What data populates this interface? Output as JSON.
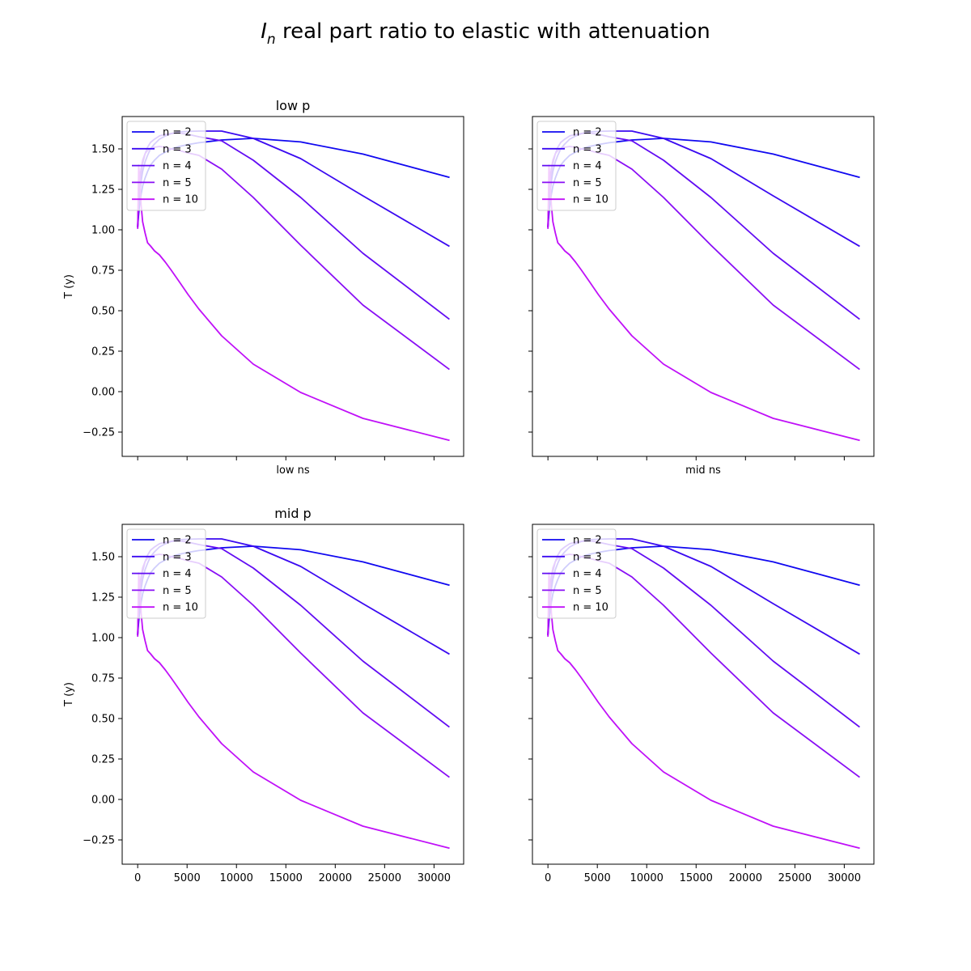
{
  "figure": {
    "suptitle_main": "I",
    "suptitle_sub": "n",
    "suptitle_rest": " real part ratio to elastic with attenuation"
  },
  "chart_data": [
    {
      "type": "line",
      "title": "low p",
      "xlabel": "low ns",
      "ylabel": "T (y)",
      "xlim": [
        -1570,
        33000
      ],
      "ylim": [
        -0.4,
        1.7
      ],
      "xticks": [
        0,
        5000,
        10000,
        15000,
        20000,
        25000,
        30000
      ],
      "show_xticklabels": false,
      "yticks": [
        "−0.25",
        "0.00",
        "0.25",
        "0.50",
        "0.75",
        "1.00",
        "1.25",
        "1.50"
      ],
      "show_yticklabels": true,
      "grid": false,
      "legend_position": "top-left",
      "x": [
        0,
        100,
        200,
        350,
        500,
        750,
        1000,
        1300,
        1700,
        2200,
        2800,
        3400,
        4200,
        5100,
        6200,
        8500,
        11700,
        16500,
        22800,
        31500
      ],
      "series": [
        {
          "name": "n = 2",
          "color": "#1008f0",
          "values": [
            1.02,
            1.1,
            1.16,
            1.22,
            1.27,
            1.32,
            1.36,
            1.4,
            1.43,
            1.46,
            1.48,
            1.5,
            1.515,
            1.527,
            1.538,
            1.555,
            1.565,
            1.543,
            1.468,
            1.325
          ]
        },
        {
          "name": "n = 3",
          "color": "#3b0af1",
          "values": [
            1.02,
            1.14,
            1.22,
            1.3,
            1.36,
            1.42,
            1.46,
            1.5,
            1.53,
            1.56,
            1.58,
            1.595,
            1.605,
            1.608,
            1.61,
            1.61,
            1.565,
            1.44,
            1.21,
            0.9
          ]
        },
        {
          "name": "n = 4",
          "color": "#620cf3",
          "values": [
            1.02,
            1.18,
            1.27,
            1.35,
            1.41,
            1.47,
            1.51,
            1.54,
            1.56,
            1.58,
            1.59,
            1.595,
            1.598,
            1.59,
            1.575,
            1.55,
            1.43,
            1.2,
            0.855,
            0.45
          ]
        },
        {
          "name": "n = 5",
          "color": "#890ef5",
          "values": [
            1.02,
            1.22,
            1.31,
            1.38,
            1.43,
            1.47,
            1.49,
            1.5,
            1.51,
            1.515,
            1.51,
            1.5,
            1.49,
            1.475,
            1.46,
            1.375,
            1.2,
            0.905,
            0.535,
            0.14
          ]
        },
        {
          "name": "n = 10",
          "color": "#c010f8",
          "values": [
            1.01,
            1.4,
            1.32,
            1.15,
            1.05,
            0.98,
            0.92,
            0.9,
            0.87,
            0.845,
            0.8,
            0.75,
            0.68,
            0.6,
            0.51,
            0.345,
            0.17,
            -0.005,
            -0.165,
            -0.3
          ]
        }
      ]
    },
    {
      "type": "line",
      "title": "",
      "xlabel": "mid ns",
      "ylabel": "",
      "xlim": [
        -1570,
        33000
      ],
      "ylim": [
        -0.4,
        1.7
      ],
      "xticks": [
        0,
        5000,
        10000,
        15000,
        20000,
        25000,
        30000
      ],
      "show_xticklabels": false,
      "yticks": [
        "−0.25",
        "0.00",
        "0.25",
        "0.50",
        "0.75",
        "1.00",
        "1.25",
        "1.50"
      ],
      "show_yticklabels": false,
      "grid": false,
      "legend_position": "top-left",
      "x": [
        0,
        100,
        200,
        350,
        500,
        750,
        1000,
        1300,
        1700,
        2200,
        2800,
        3400,
        4200,
        5100,
        6200,
        8500,
        11700,
        16500,
        22800,
        31500
      ],
      "series": [
        {
          "name": "n = 2",
          "color": "#1008f0",
          "values": [
            1.02,
            1.1,
            1.16,
            1.22,
            1.27,
            1.32,
            1.36,
            1.4,
            1.43,
            1.46,
            1.48,
            1.5,
            1.515,
            1.527,
            1.538,
            1.555,
            1.565,
            1.543,
            1.468,
            1.325
          ]
        },
        {
          "name": "n = 3",
          "color": "#3b0af1",
          "values": [
            1.02,
            1.14,
            1.22,
            1.3,
            1.36,
            1.42,
            1.46,
            1.5,
            1.53,
            1.56,
            1.58,
            1.595,
            1.605,
            1.608,
            1.61,
            1.61,
            1.565,
            1.44,
            1.21,
            0.9
          ]
        },
        {
          "name": "n = 4",
          "color": "#620cf3",
          "values": [
            1.02,
            1.18,
            1.27,
            1.35,
            1.41,
            1.47,
            1.51,
            1.54,
            1.56,
            1.58,
            1.59,
            1.595,
            1.598,
            1.59,
            1.575,
            1.55,
            1.43,
            1.2,
            0.855,
            0.45
          ]
        },
        {
          "name": "n = 5",
          "color": "#890ef5",
          "values": [
            1.02,
            1.22,
            1.31,
            1.38,
            1.43,
            1.47,
            1.49,
            1.5,
            1.51,
            1.515,
            1.51,
            1.5,
            1.49,
            1.475,
            1.46,
            1.375,
            1.2,
            0.905,
            0.535,
            0.14
          ]
        },
        {
          "name": "n = 10",
          "color": "#c010f8",
          "values": [
            1.01,
            1.4,
            1.32,
            1.15,
            1.05,
            0.98,
            0.92,
            0.9,
            0.87,
            0.845,
            0.8,
            0.75,
            0.68,
            0.6,
            0.51,
            0.345,
            0.17,
            -0.005,
            -0.165,
            -0.3
          ]
        }
      ]
    },
    {
      "type": "line",
      "title": "mid p",
      "xlabel": "",
      "ylabel": "T (y)",
      "xlim": [
        -1570,
        33000
      ],
      "ylim": [
        -0.4,
        1.7
      ],
      "xticks": [
        0,
        5000,
        10000,
        15000,
        20000,
        25000,
        30000
      ],
      "show_xticklabels": true,
      "yticks": [
        "−0.25",
        "0.00",
        "0.25",
        "0.50",
        "0.75",
        "1.00",
        "1.25",
        "1.50"
      ],
      "show_yticklabels": true,
      "grid": false,
      "legend_position": "top-left",
      "x": [
        0,
        100,
        200,
        350,
        500,
        750,
        1000,
        1300,
        1700,
        2200,
        2800,
        3400,
        4200,
        5100,
        6200,
        8500,
        11700,
        16500,
        22800,
        31500
      ],
      "series": [
        {
          "name": "n = 2",
          "color": "#1008f0",
          "values": [
            1.02,
            1.1,
            1.16,
            1.22,
            1.27,
            1.32,
            1.36,
            1.4,
            1.43,
            1.46,
            1.48,
            1.5,
            1.515,
            1.527,
            1.538,
            1.555,
            1.565,
            1.543,
            1.468,
            1.325
          ]
        },
        {
          "name": "n = 3",
          "color": "#3b0af1",
          "values": [
            1.02,
            1.14,
            1.22,
            1.3,
            1.36,
            1.42,
            1.46,
            1.5,
            1.53,
            1.56,
            1.58,
            1.595,
            1.605,
            1.608,
            1.61,
            1.61,
            1.565,
            1.44,
            1.21,
            0.9
          ]
        },
        {
          "name": "n = 4",
          "color": "#620cf3",
          "values": [
            1.02,
            1.18,
            1.27,
            1.35,
            1.41,
            1.47,
            1.51,
            1.54,
            1.56,
            1.58,
            1.59,
            1.595,
            1.598,
            1.59,
            1.575,
            1.55,
            1.43,
            1.2,
            0.855,
            0.45
          ]
        },
        {
          "name": "n = 5",
          "color": "#890ef5",
          "values": [
            1.02,
            1.22,
            1.31,
            1.38,
            1.43,
            1.47,
            1.49,
            1.5,
            1.51,
            1.515,
            1.51,
            1.5,
            1.49,
            1.475,
            1.46,
            1.375,
            1.2,
            0.905,
            0.535,
            0.14
          ]
        },
        {
          "name": "n = 10",
          "color": "#c010f8",
          "values": [
            1.01,
            1.4,
            1.32,
            1.15,
            1.05,
            0.98,
            0.92,
            0.9,
            0.87,
            0.845,
            0.8,
            0.75,
            0.68,
            0.6,
            0.51,
            0.345,
            0.17,
            -0.005,
            -0.165,
            -0.3
          ]
        }
      ]
    },
    {
      "type": "line",
      "title": "",
      "xlabel": "",
      "ylabel": "",
      "xlim": [
        -1570,
        33000
      ],
      "ylim": [
        -0.4,
        1.7
      ],
      "xticks": [
        0,
        5000,
        10000,
        15000,
        20000,
        25000,
        30000
      ],
      "show_xticklabels": true,
      "yticks": [
        "−0.25",
        "0.00",
        "0.25",
        "0.50",
        "0.75",
        "1.00",
        "1.25",
        "1.50"
      ],
      "show_yticklabels": false,
      "grid": false,
      "legend_position": "top-left",
      "x": [
        0,
        100,
        200,
        350,
        500,
        750,
        1000,
        1300,
        1700,
        2200,
        2800,
        3400,
        4200,
        5100,
        6200,
        8500,
        11700,
        16500,
        22800,
        31500
      ],
      "series": [
        {
          "name": "n = 2",
          "color": "#1008f0",
          "values": [
            1.02,
            1.1,
            1.16,
            1.22,
            1.27,
            1.32,
            1.36,
            1.4,
            1.43,
            1.46,
            1.48,
            1.5,
            1.515,
            1.527,
            1.538,
            1.555,
            1.565,
            1.543,
            1.468,
            1.325
          ]
        },
        {
          "name": "n = 3",
          "color": "#3b0af1",
          "values": [
            1.02,
            1.14,
            1.22,
            1.3,
            1.36,
            1.42,
            1.46,
            1.5,
            1.53,
            1.56,
            1.58,
            1.595,
            1.605,
            1.608,
            1.61,
            1.61,
            1.565,
            1.44,
            1.21,
            0.9
          ]
        },
        {
          "name": "n = 4",
          "color": "#620cf3",
          "values": [
            1.02,
            1.18,
            1.27,
            1.35,
            1.41,
            1.47,
            1.51,
            1.54,
            1.56,
            1.58,
            1.59,
            1.595,
            1.598,
            1.59,
            1.575,
            1.55,
            1.43,
            1.2,
            0.855,
            0.45
          ]
        },
        {
          "name": "n = 5",
          "color": "#890ef5",
          "values": [
            1.02,
            1.22,
            1.31,
            1.38,
            1.43,
            1.47,
            1.49,
            1.5,
            1.51,
            1.515,
            1.51,
            1.5,
            1.49,
            1.475,
            1.46,
            1.375,
            1.2,
            0.905,
            0.535,
            0.14
          ]
        },
        {
          "name": "n = 10",
          "color": "#c010f8",
          "values": [
            1.01,
            1.4,
            1.32,
            1.15,
            1.05,
            0.98,
            0.92,
            0.9,
            0.87,
            0.845,
            0.8,
            0.75,
            0.68,
            0.6,
            0.51,
            0.345,
            0.17,
            -0.005,
            -0.165,
            -0.3
          ]
        }
      ]
    }
  ]
}
